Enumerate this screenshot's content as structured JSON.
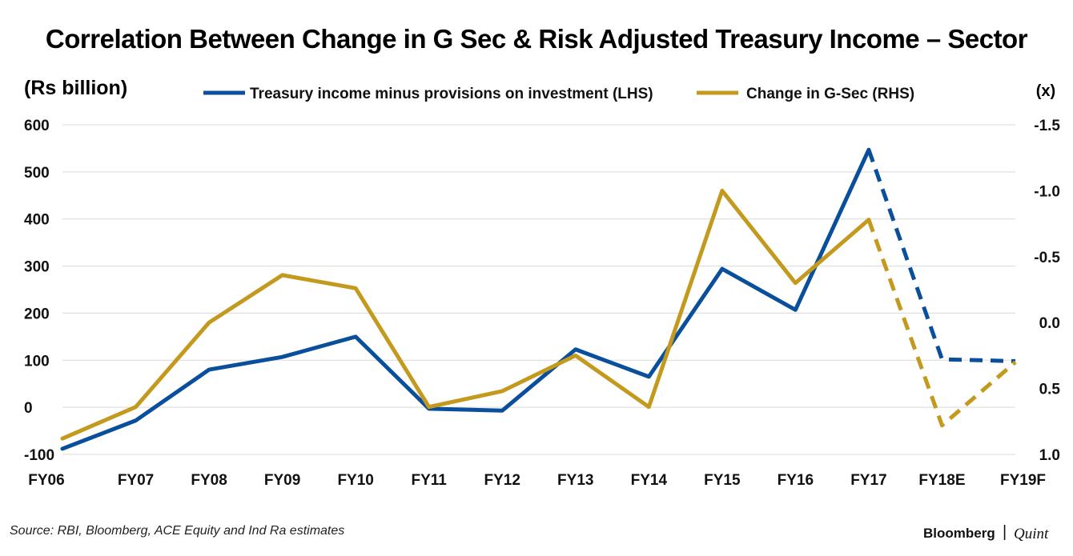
{
  "chart_data": {
    "type": "line",
    "title": "Correlation Between Change in G Sec & Risk Adjusted Treasury Income – Sector",
    "ylabel_left": "(Rs billion)",
    "ylabel_right": "(x)",
    "categories": [
      "FY06",
      "FY07",
      "FY08",
      "FY09",
      "FY10",
      "FY11",
      "FY12",
      "FY13",
      "FY14",
      "FY15",
      "FY16",
      "FY17",
      "FY18E",
      "FY19F"
    ],
    "left_axis": {
      "min": -100,
      "max": 600,
      "ticks": [
        600,
        500,
        400,
        300,
        200,
        100,
        0,
        -100
      ],
      "tick_labels": [
        "600",
        "500",
        "400",
        "300",
        "200",
        "100",
        "0",
        "-100"
      ]
    },
    "right_axis": {
      "min": -1.5,
      "max": 1.0,
      "inverted": true,
      "ticks": [
        -1.5,
        -1.0,
        -0.5,
        0.0,
        0.5,
        1.0
      ],
      "tick_labels": [
        "-1.5",
        "-1.0",
        "-0.5",
        "0.0",
        "0.5",
        "1.0"
      ]
    },
    "series": [
      {
        "name": "Treasury income minus provisions on investment (LHS)",
        "axis": "left",
        "color": "#0a4f9c",
        "values": [
          -88,
          -28,
          80,
          107,
          150,
          -3,
          -7,
          123,
          65,
          294,
          207,
          547,
          102,
          98
        ],
        "dashed_from_index": 11
      },
      {
        "name": "Change in G-Sec (RHS)",
        "axis": "right",
        "color": "#c49a1e",
        "values": [
          0.88,
          0.64,
          0.0,
          -0.36,
          -0.26,
          0.64,
          0.52,
          0.25,
          0.64,
          -1.0,
          -0.3,
          -0.78,
          0.78,
          0.3
        ],
        "dashed_from_index": 11
      }
    ],
    "source": "Source: RBI, Bloomberg, ACE Equity and Ind Ra estimates"
  },
  "branding": {
    "left": "Bloomberg",
    "separator": "|",
    "right": "Quint"
  }
}
